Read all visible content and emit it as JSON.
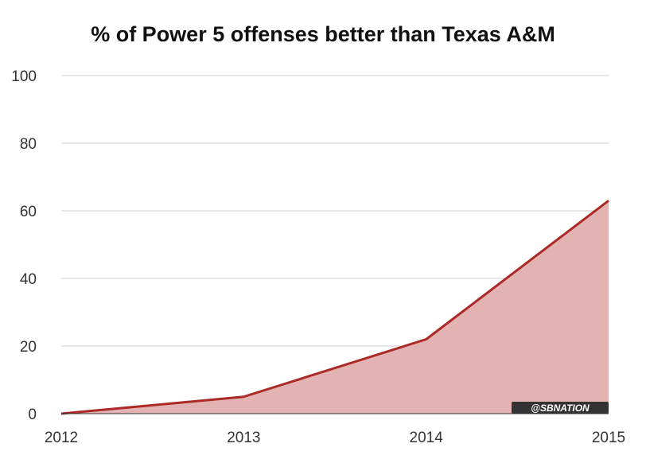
{
  "chart_data": {
    "type": "area",
    "title": "% of Power 5 offenses better than Texas A&M",
    "xlabel": "",
    "ylabel": "",
    "x": [
      2012,
      2013,
      2014,
      2015
    ],
    "series": [
      {
        "values": [
          0,
          5,
          22,
          63
        ]
      }
    ],
    "ylim": [
      0,
      100
    ],
    "yticks": [
      0,
      20,
      40,
      60,
      80,
      100
    ],
    "grid": true,
    "legend": "none",
    "line_color": "#ab2a25",
    "fill_color": "#e3b3b3",
    "watermark": "@SBNATION"
  }
}
